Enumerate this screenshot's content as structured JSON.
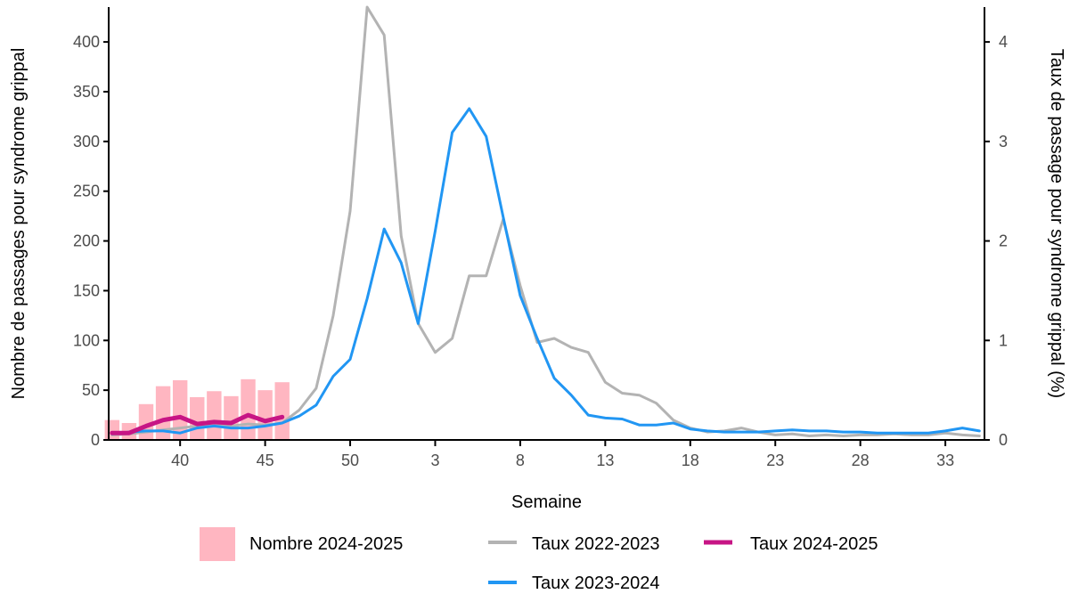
{
  "chart_data": {
    "type": "bar+line",
    "xlabel": "Semaine",
    "ylabel_left": "Nombre de passages pour syndrome grippal",
    "ylabel_right": "Taux de passage pour syndrome grippal (%)",
    "x_categories": [
      36,
      37,
      38,
      39,
      40,
      41,
      42,
      43,
      44,
      45,
      46,
      47,
      48,
      49,
      50,
      51,
      52,
      1,
      2,
      3,
      4,
      5,
      6,
      7,
      8,
      9,
      10,
      11,
      12,
      13,
      14,
      15,
      16,
      17,
      18,
      19,
      20,
      21,
      22,
      23,
      24,
      25,
      26,
      27,
      28,
      29,
      30,
      31,
      32,
      33,
      34,
      35
    ],
    "x_tick_labels": [
      "40",
      "45",
      "50",
      "3",
      "8",
      "13",
      "18",
      "23",
      "28",
      "33"
    ],
    "y_left_ticks": [
      "0",
      "50",
      "100",
      "150",
      "200",
      "250",
      "300",
      "350",
      "400"
    ],
    "y_right_ticks": [
      "0",
      "1",
      "2",
      "3",
      "4"
    ],
    "ylim_left": [
      0,
      435
    ],
    "ylim_right": [
      0,
      4.35
    ],
    "legend_position": "bottom",
    "series": [
      {
        "name": "Nombre 2024-2025",
        "kind": "bar",
        "axis": "left",
        "color": "#ffb6c1",
        "values": [
          20,
          17,
          36,
          54,
          60,
          43,
          49,
          44,
          61,
          50,
          58
        ]
      },
      {
        "name": "Taux 2022-2023",
        "kind": "line",
        "axis": "right",
        "color": "#b3b3b3",
        "values": [
          0.05,
          0.06,
          0.08,
          0.1,
          0.12,
          0.14,
          0.15,
          0.14,
          0.16,
          0.15,
          0.17,
          0.3,
          0.52,
          1.25,
          2.3,
          4.35,
          4.07,
          2.05,
          1.17,
          0.88,
          1.02,
          1.65,
          1.65,
          2.22,
          1.55,
          0.98,
          1.02,
          0.93,
          0.88,
          0.58,
          0.47,
          0.45,
          0.37,
          0.2,
          0.12,
          0.08,
          0.09,
          0.12,
          0.08,
          0.05,
          0.06,
          0.04,
          0.05,
          0.04,
          0.05,
          0.05,
          0.06,
          0.05,
          0.05,
          0.07,
          0.05,
          0.04
        ]
      },
      {
        "name": "Taux 2023-2024",
        "kind": "line",
        "axis": "right",
        "color": "#2196f3",
        "values": [
          0.06,
          0.08,
          0.09,
          0.09,
          0.07,
          0.12,
          0.14,
          0.12,
          0.12,
          0.14,
          0.17,
          0.24,
          0.35,
          0.64,
          0.81,
          1.42,
          2.12,
          1.78,
          1.17,
          2.1,
          3.09,
          3.33,
          3.05,
          2.24,
          1.45,
          1.02,
          0.62,
          0.45,
          0.25,
          0.22,
          0.21,
          0.15,
          0.15,
          0.17,
          0.11,
          0.09,
          0.08,
          0.08,
          0.08,
          0.09,
          0.1,
          0.09,
          0.09,
          0.08,
          0.08,
          0.07,
          0.07,
          0.07,
          0.07,
          0.09,
          0.12,
          0.09
        ]
      },
      {
        "name": "Taux 2024-2025",
        "kind": "line",
        "axis": "right",
        "color": "#c71585",
        "values": [
          0.07,
          0.07,
          0.14,
          0.2,
          0.23,
          0.16,
          0.18,
          0.17,
          0.25,
          0.19,
          0.23
        ]
      }
    ]
  }
}
